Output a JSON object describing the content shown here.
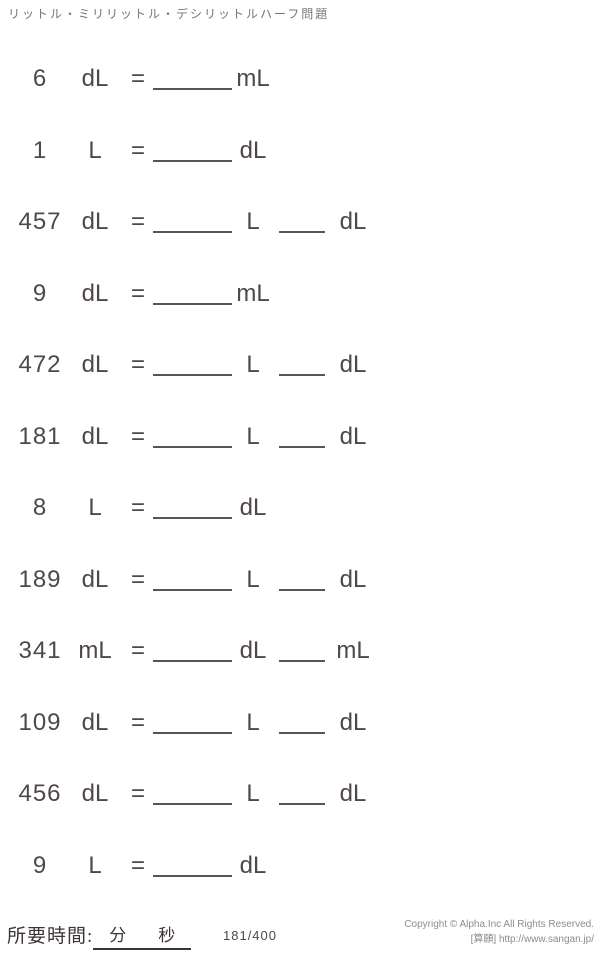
{
  "title": "リットル・ミリリットル・デシリットルハーフ問題",
  "symbols": {
    "equals": "="
  },
  "problems": [
    {
      "value": "6",
      "unit": "dL",
      "parts": [
        {
          "unit": "mL"
        }
      ]
    },
    {
      "value": "1",
      "unit": "L",
      "parts": [
        {
          "unit": "dL"
        }
      ]
    },
    {
      "value": "457",
      "unit": "dL",
      "parts": [
        {
          "unit": "L"
        },
        {
          "unit": "dL"
        }
      ]
    },
    {
      "value": "9",
      "unit": "dL",
      "parts": [
        {
          "unit": "mL"
        }
      ]
    },
    {
      "value": "472",
      "unit": "dL",
      "parts": [
        {
          "unit": "L"
        },
        {
          "unit": "dL"
        }
      ]
    },
    {
      "value": "181",
      "unit": "dL",
      "parts": [
        {
          "unit": "L"
        },
        {
          "unit": "dL"
        }
      ]
    },
    {
      "value": "8",
      "unit": "L",
      "parts": [
        {
          "unit": "dL"
        }
      ]
    },
    {
      "value": "189",
      "unit": "dL",
      "parts": [
        {
          "unit": "L"
        },
        {
          "unit": "dL"
        }
      ]
    },
    {
      "value": "341",
      "unit": "mL",
      "parts": [
        {
          "unit": "dL"
        },
        {
          "unit": "mL"
        }
      ]
    },
    {
      "value": "109",
      "unit": "dL",
      "parts": [
        {
          "unit": "L"
        },
        {
          "unit": "dL"
        }
      ]
    },
    {
      "value": "456",
      "unit": "dL",
      "parts": [
        {
          "unit": "L"
        },
        {
          "unit": "dL"
        }
      ]
    },
    {
      "value": "9",
      "unit": "L",
      "parts": [
        {
          "unit": "dL"
        }
      ]
    }
  ],
  "footer": {
    "time_label": "所要時間:",
    "minutes_label": "分",
    "seconds_label": "秒",
    "page_indicator": "181/400",
    "copyright_line1": "Copyright © Alpha.Inc All Rights Reserved.",
    "copyright_line2": "[算願] http://www.sangan.jp/"
  },
  "colors": {
    "text": "#4e4846",
    "line": "#5d5452",
    "footer_text": "#3c3436",
    "muted": "#8d8d8d",
    "title": "#7b7472"
  }
}
